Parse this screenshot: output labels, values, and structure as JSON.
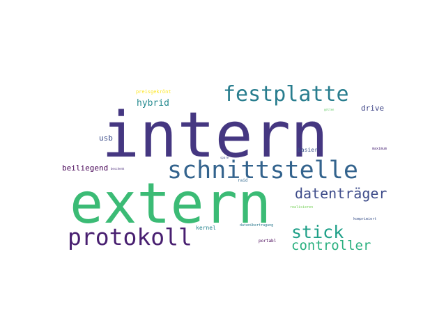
{
  "words": [
    {
      "text": "intern",
      "color": "#453781"
    },
    {
      "text": "extern",
      "color": "#3bbb75"
    },
    {
      "text": "schnittstelle",
      "color": "#33638d"
    },
    {
      "text": "festplatte",
      "color": "#287d8e"
    },
    {
      "text": "protokoll",
      "color": "#481f70"
    },
    {
      "text": "datenträger",
      "color": "#3e4c8a"
    },
    {
      "text": "stick",
      "color": "#1fa088"
    },
    {
      "text": "controller",
      "color": "#2ab07f"
    },
    {
      "text": "hybrid",
      "color": "#23898e"
    },
    {
      "text": "drive",
      "color": "#404688"
    },
    {
      "text": "usb",
      "color": "#3d4e8a"
    },
    {
      "text": "beiliegend",
      "color": "#440154"
    },
    {
      "text": "preisgekrönt",
      "color": "#fde725"
    },
    {
      "text": "basier",
      "color": "#3b528b"
    },
    {
      "text": "kernel",
      "color": "#25848e"
    },
    {
      "text": "datenübertragung",
      "color": "#2a788e"
    },
    {
      "text": "portabl",
      "color": "#440154"
    },
    {
      "text": "komprimiert",
      "color": "#3b528b"
    },
    {
      "text": "raid",
      "color": "#31688e"
    },
    {
      "text": "gelten",
      "color": "#5ec962"
    },
    {
      "text": "beschenk",
      "color": "#482878"
    },
    {
      "text": "spare",
      "color": "#3e4989"
    },
    {
      "text": "maximum",
      "color": "#482374"
    },
    {
      "text": "realisieren",
      "color": "#73d055"
    }
  ]
}
